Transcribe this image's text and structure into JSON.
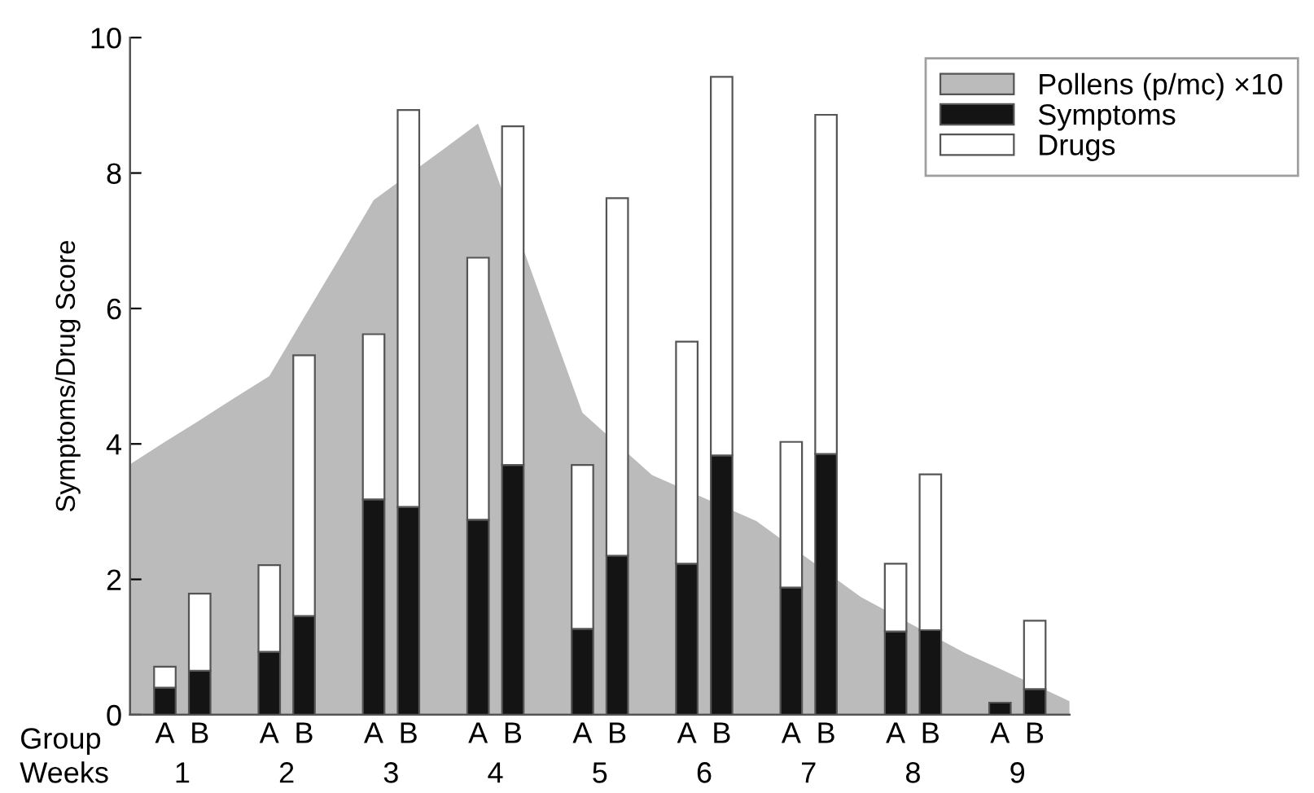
{
  "chart_data": [
    {
      "type": "area",
      "legend": "top right",
      "categories": [
        null,
        null,
        null,
        null,
        null,
        null,
        null,
        null,
        null,
        null,
        null,
        null,
        null,
        null,
        null,
        null,
        null,
        null,
        null,
        null,
        null,
        null,
        null,
        null,
        null,
        null,
        null,
        null
      ],
      "series": [
        {
          "name": "Pollens (p/mc) ×10",
          "color": "#bbbbbb",
          "values": [
            3.7,
            4.03,
            4.35,
            4.68,
            5.0,
            5.87,
            6.73,
            7.6,
            null,
            8.35,
            8.73,
            null,
            5.88,
            4.46,
            null,
            3.54,
            null,
            null,
            2.86,
            null,
            null,
            1.74,
            null,
            null,
            0.91,
            0.68,
            null,
            0.2
          ]
        }
      ],
      "ylim": [
        0,
        10
      ]
    },
    {
      "type": "bar",
      "stacked": true,
      "ylabel": "Symptoms/Drug Score",
      "legend": "top right",
      "categories": [
        null,
        "A",
        "B",
        null,
        "A",
        "B",
        null,
        "A",
        "B",
        null,
        "A",
        "B",
        null,
        "A",
        "B",
        null,
        "A",
        "B",
        null,
        "A",
        "B",
        null,
        "A",
        "B",
        null,
        "A",
        "B",
        null
      ],
      "series": [
        {
          "name": "Symptoms",
          "color": "#141414",
          "values": [
            null,
            0.4,
            0.65,
            null,
            0.93,
            1.46,
            null,
            3.18,
            3.07,
            null,
            2.88,
            3.69,
            null,
            1.27,
            2.35,
            null,
            2.23,
            3.83,
            null,
            1.88,
            3.85,
            null,
            1.23,
            1.25,
            null,
            0.18,
            0.38,
            null
          ]
        },
        {
          "name": "Drugs",
          "color": "#ffffff",
          "values": [
            null,
            0.31,
            1.14,
            null,
            1.28,
            3.85,
            null,
            2.44,
            5.86,
            null,
            3.87,
            5.0,
            null,
            2.42,
            5.28,
            null,
            3.28,
            5.59,
            null,
            2.15,
            5.01,
            null,
            1.0,
            2.3,
            null,
            null,
            1.01,
            null
          ]
        }
      ],
      "ylim": [
        0,
        10
      ],
      "yticks": [
        0,
        2,
        4,
        6,
        8,
        10
      ],
      "grid": false,
      "annotations": [
        "Group",
        "Weeks",
        "1",
        "2",
        "3",
        "4",
        "5",
        "6",
        "7",
        "8",
        "9"
      ]
    }
  ]
}
